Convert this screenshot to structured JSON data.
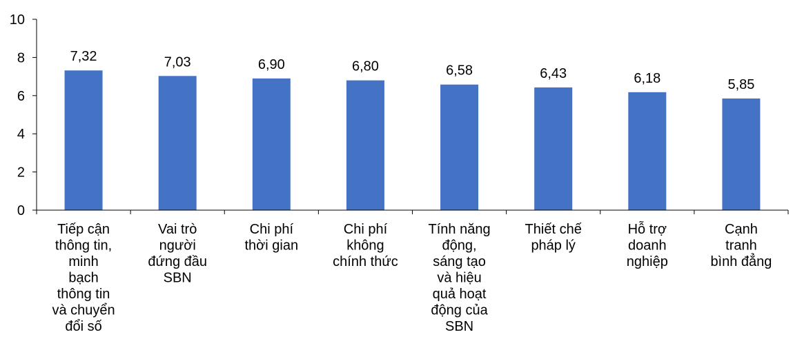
{
  "chart_data": {
    "type": "bar",
    "categories": [
      [
        "Tiếp cận",
        "thông tin,",
        "minh",
        "bạch",
        "thông tin",
        "và chuyển",
        "đổi số"
      ],
      [
        "Vai trò",
        "người",
        "đứng đầu",
        "SBN"
      ],
      [
        "Chi phí",
        "thời gian"
      ],
      [
        "Chi phí",
        "không",
        "chính thức"
      ],
      [
        "Tính năng",
        "động,",
        "sáng tạo",
        "và hiệu",
        "quả hoạt",
        "động của",
        "SBN"
      ],
      [
        "Thiết chế",
        "pháp lý"
      ],
      [
        "Hỗ trợ",
        "doanh",
        "nghiệp"
      ],
      [
        "Cạnh",
        "tranh",
        "bình đẳng"
      ]
    ],
    "values": [
      7.32,
      7.03,
      6.9,
      6.8,
      6.58,
      6.43,
      6.18,
      5.85
    ],
    "data_labels": [
      "7,32",
      "7,03",
      "6,90",
      "6,80",
      "6,58",
      "6,43",
      "6,18",
      "5,85"
    ],
    "y_ticks": [
      0,
      2,
      4,
      6,
      8,
      10
    ],
    "ylim": [
      0,
      10
    ],
    "bar_color": "#4472C4",
    "axis_color": "#000000",
    "grid": false,
    "legend": "none",
    "title": "",
    "xlabel": "",
    "ylabel": ""
  }
}
